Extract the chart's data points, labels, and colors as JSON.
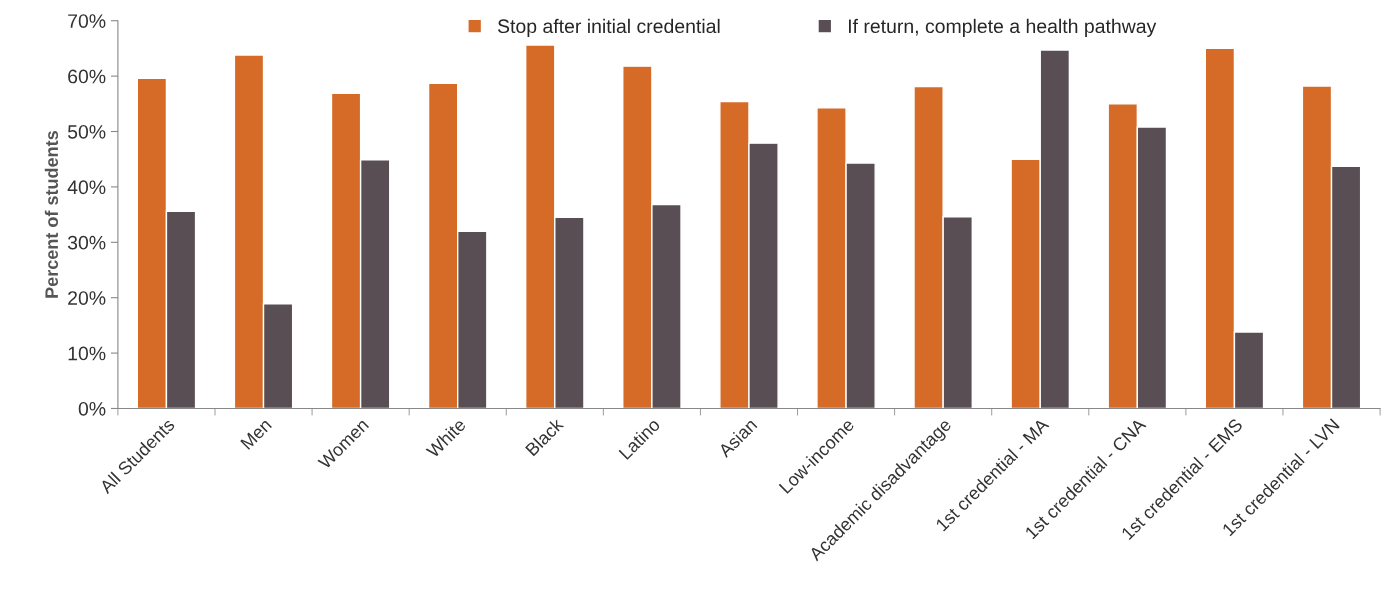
{
  "chart_data": {
    "type": "bar",
    "ylabel": "Percent of students",
    "categories": [
      "All Students",
      "Men",
      "Women",
      "White",
      "Black",
      "Latino",
      "Asian",
      "Low-income",
      "Academic disadvantage",
      "1st credential - MA",
      "1st credential - CNA",
      "1st credential - EMS",
      "1st credential - LVN"
    ],
    "series": [
      {
        "name": "Stop after initial credential",
        "color": "#d56b27",
        "values": [
          59.6,
          63.8,
          56.9,
          58.7,
          65.6,
          61.8,
          55.4,
          54.3,
          58.1,
          45.0,
          55.0,
          65.0,
          58.2
        ]
      },
      {
        "name": "If return, complete a health pathway",
        "color": "#594e53",
        "values": [
          35.6,
          18.9,
          44.9,
          32.0,
          34.5,
          36.8,
          47.9,
          44.3,
          34.6,
          64.7,
          50.8,
          13.8,
          43.7
        ]
      }
    ],
    "ylim": [
      0,
      70
    ],
    "yticks": [
      {
        "value": 0,
        "label": "0%"
      },
      {
        "value": 10,
        "label": "10%"
      },
      {
        "value": 20,
        "label": "20%"
      },
      {
        "value": 30,
        "label": "30%"
      },
      {
        "value": 40,
        "label": "40%"
      },
      {
        "value": 50,
        "label": "50%"
      },
      {
        "value": 60,
        "label": "60%"
      },
      {
        "value": 70,
        "label": "70%"
      }
    ],
    "grid": false,
    "legend": "top"
  }
}
